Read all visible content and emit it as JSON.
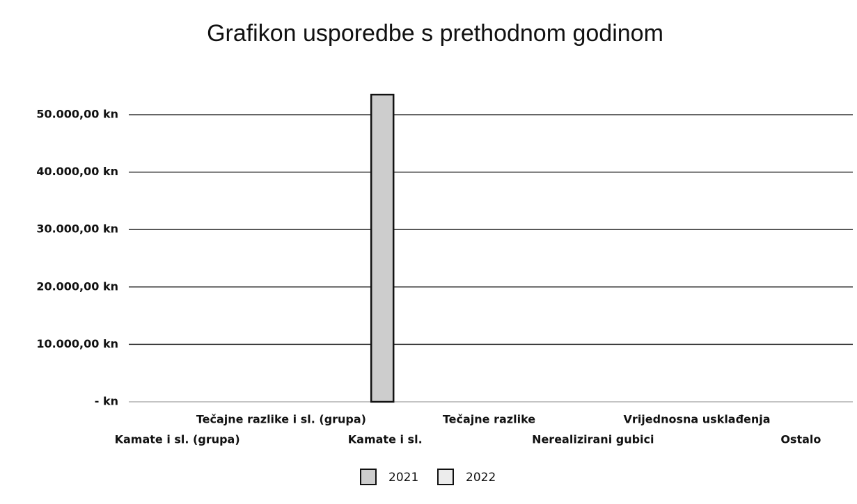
{
  "chart_data": {
    "type": "bar",
    "title": "Grafikon usporedbe s prethodnom godinom",
    "categories": [
      "Kamate i sl. (grupa)",
      "Tečajne razlike i sl. (grupa)",
      "Kamate i sl.",
      "Tečajne razlike",
      "Nerealizirani gubici",
      "Vrijednosna usklađenja",
      "Ostalo"
    ],
    "series": [
      {
        "name": "2021",
        "color": "#cdcdcd",
        "values": [
          0,
          0,
          53500,
          0,
          0,
          0,
          0
        ]
      },
      {
        "name": "2022",
        "color": "#ececec",
        "values": [
          0,
          0,
          0,
          0,
          0,
          0,
          0
        ]
      }
    ],
    "ylim": [
      0,
      50000
    ],
    "yticks": [
      {
        "value": 0,
        "label": "- kn"
      },
      {
        "value": 10000,
        "label": "10.000,00 kn"
      },
      {
        "value": 20000,
        "label": "20.000,00 kn"
      },
      {
        "value": 30000,
        "label": "30.000,00 kn"
      },
      {
        "value": 40000,
        "label": "40.000,00 kn"
      },
      {
        "value": 50000,
        "label": "50.000,00 kn"
      }
    ],
    "grid": true,
    "legend": "bottom"
  }
}
